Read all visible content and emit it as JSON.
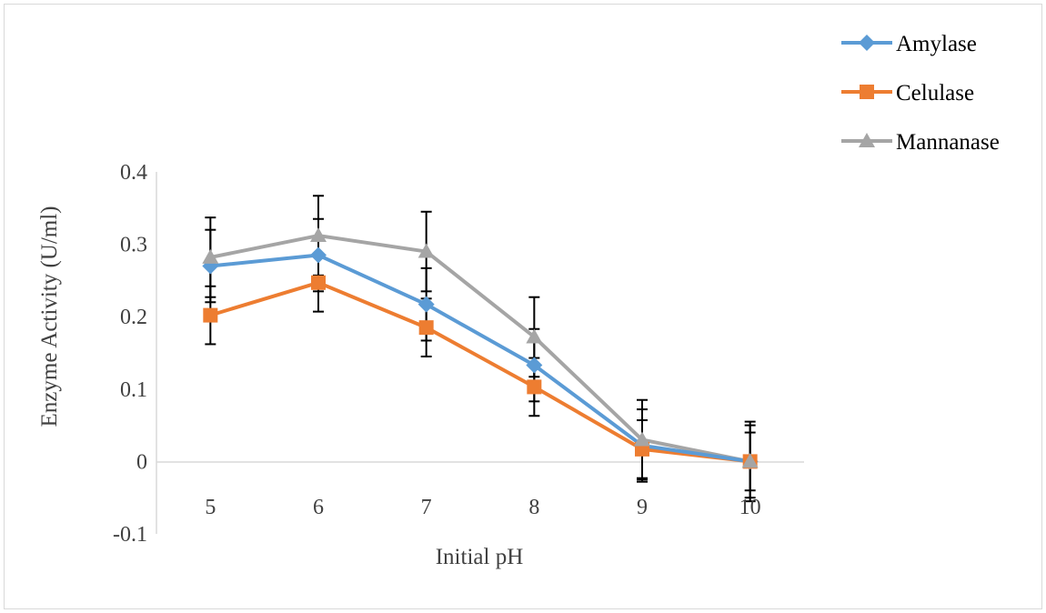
{
  "chart_data": {
    "type": "line",
    "title": "",
    "xlabel": "Initial pH",
    "ylabel": "Enzyme Activity (U/ml)",
    "categories": [
      "5",
      "6",
      "7",
      "8",
      "9",
      "10"
    ],
    "ylim": [
      -0.1,
      0.4
    ],
    "yticks": [
      -0.1,
      0,
      0.1,
      0.2,
      0.3,
      0.4
    ],
    "ytick_labels": [
      "-0.1",
      "0",
      "0.1",
      "0.2",
      "0.3",
      "0.4"
    ],
    "grid": false,
    "legend_position": "top-right",
    "series": [
      {
        "name": "Amylase",
        "color": "#5b9bd5",
        "marker": "diamond",
        "values": [
          0.27,
          0.285,
          0.217,
          0.133,
          0.022,
          0.0
        ],
        "errors": [
          0.05,
          0.05,
          0.05,
          0.05,
          0.05,
          0.05
        ]
      },
      {
        "name": "Celulase",
        "color": "#ed7d31",
        "marker": "square",
        "values": [
          0.202,
          0.247,
          0.185,
          0.103,
          0.017,
          0.0
        ],
        "errors": [
          0.04,
          0.04,
          0.04,
          0.04,
          0.04,
          0.04
        ]
      },
      {
        "name": "Mannanase",
        "color": "#a5a5a5",
        "marker": "triangle",
        "values": [
          0.282,
          0.312,
          0.29,
          0.172,
          0.03,
          0.0
        ],
        "errors": [
          0.055,
          0.055,
          0.055,
          0.055,
          0.055,
          0.055
        ]
      }
    ]
  }
}
